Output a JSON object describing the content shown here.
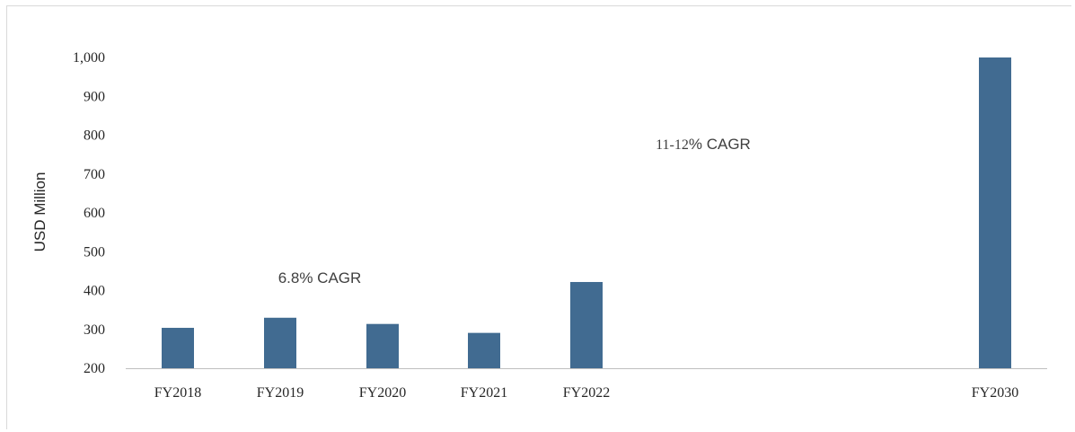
{
  "chart_data": {
    "type": "bar",
    "categories": [
      "FY2018",
      "FY2019",
      "FY2020",
      "FY2021",
      "FY2022",
      "FY2030"
    ],
    "values": [
      304,
      330,
      314,
      291,
      422,
      1000
    ],
    "ylabel": "USD Million",
    "xlabel": "",
    "title": "",
    "ylim": [
      200,
      1000
    ],
    "yticks": [
      "200",
      "300",
      "400",
      "500",
      "600",
      "700",
      "800",
      "900",
      "1,000"
    ],
    "grid": false,
    "legend": "none",
    "bar_color": "#416B91",
    "axis_color": "#BFBFBF",
    "annotations": [
      {
        "text_parts": [
          "6.8% CAGR"
        ],
        "anchor_category": "FY2019",
        "anchor_value": 400
      },
      {
        "text_parts": [
          "11-12",
          "% CAGR"
        ],
        "anchor_category": "FY2030",
        "anchor_value": 840
      }
    ]
  }
}
